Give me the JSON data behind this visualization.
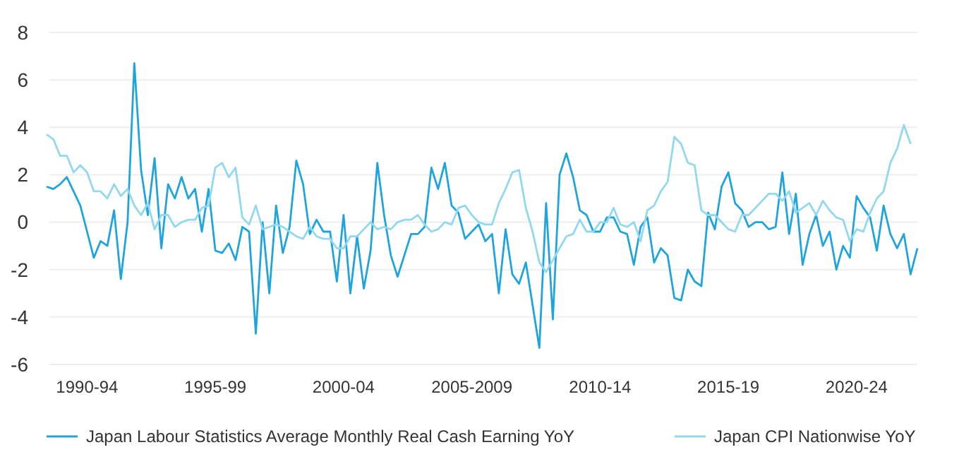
{
  "chart_data": {
    "type": "line",
    "ylim": [
      -6,
      8
    ],
    "yticks": [
      -6,
      -4,
      -2,
      0,
      2,
      4,
      6,
      8
    ],
    "categories": [
      null,
      null,
      null,
      null,
      null,
      null,
      "1990-94",
      null,
      null,
      null,
      null,
      null,
      null,
      null,
      null,
      null,
      null,
      null,
      null,
      null,
      null,
      null,
      null,
      null,
      null,
      "1995-99",
      null,
      null,
      null,
      null,
      null,
      null,
      null,
      null,
      null,
      null,
      null,
      null,
      null,
      null,
      null,
      null,
      null,
      null,
      "2000-04",
      null,
      null,
      null,
      null,
      null,
      null,
      null,
      null,
      null,
      null,
      null,
      null,
      null,
      null,
      null,
      null,
      null,
      null,
      "2005-2009",
      null,
      null,
      null,
      null,
      null,
      null,
      null,
      null,
      null,
      null,
      null,
      null,
      null,
      null,
      null,
      null,
      null,
      null,
      "2010-14",
      null,
      null,
      null,
      null,
      null,
      null,
      null,
      null,
      null,
      null,
      null,
      null,
      null,
      null,
      null,
      null,
      null,
      null,
      "2015-19",
      null,
      null,
      null,
      null,
      null,
      null,
      null,
      null,
      null,
      null,
      null,
      null,
      null,
      null,
      null,
      null,
      null,
      null,
      "2020-24",
      null,
      null,
      null,
      null,
      null,
      null,
      null,
      null,
      null
    ],
    "grid": "y",
    "legend": "bottom",
    "series": [
      {
        "name": "Japan Labour Statistics Average Monthly Real Cash Earning YoY",
        "color": "#1fa5dc",
        "values": [
          1.5,
          1.4,
          1.6,
          1.9,
          1.3,
          0.7,
          -0.4,
          -1.5,
          -0.8,
          -1.0,
          0.5,
          -2.4,
          0.0,
          6.7,
          2.2,
          0.3,
          2.7,
          -1.1,
          1.6,
          1.0,
          1.9,
          1.0,
          1.4,
          -0.4,
          1.4,
          -1.2,
          -1.3,
          -0.9,
          -1.6,
          -0.2,
          -0.4,
          -4.7,
          0.0,
          -3.0,
          0.7,
          -1.3,
          -0.2,
          2.6,
          1.6,
          -0.5,
          0.1,
          -0.4,
          -0.4,
          -2.5,
          0.3,
          -3.0,
          -0.6,
          -2.8,
          -1.2,
          2.5,
          0.3,
          -1.4,
          -2.3,
          -1.4,
          -0.5,
          -0.5,
          -0.2,
          2.3,
          1.4,
          2.5,
          0.7,
          0.4,
          -0.7,
          -0.4,
          -0.1,
          -0.8,
          -0.5,
          -3.0,
          -0.3,
          -2.2,
          -2.6,
          -1.7,
          -3.5,
          -5.3,
          0.8,
          -4.1,
          2.0,
          2.9,
          1.9,
          0.5,
          0.3,
          -0.4,
          -0.4,
          0.2,
          0.2,
          -0.4,
          -0.5,
          -1.8,
          -0.2,
          0.2,
          -1.7,
          -1.1,
          -1.4,
          -3.2,
          -3.3,
          -2.0,
          -2.5,
          -2.7,
          0.4,
          -0.3,
          1.5,
          2.1,
          0.8,
          0.5,
          -0.2,
          0.0,
          0.0,
          -0.3,
          -0.2,
          2.1,
          -0.5,
          1.2,
          -1.8,
          -0.5,
          0.3,
          -1.0,
          -0.4,
          -2.0,
          -1.0,
          -1.5,
          1.1,
          0.6,
          0.2,
          -1.2,
          0.7,
          -0.5,
          -1.1,
          -0.5,
          -2.2,
          -1.1
        ]
      },
      {
        "name": "Japan CPI Nationwise YoY",
        "color": "#92d8ee",
        "values": [
          3.7,
          3.5,
          2.8,
          2.8,
          2.1,
          2.4,
          2.1,
          1.3,
          1.3,
          1.0,
          1.6,
          1.1,
          1.4,
          0.7,
          0.3,
          0.8,
          -0.3,
          0.3,
          0.3,
          -0.2,
          0.0,
          0.1,
          0.1,
          0.6,
          0.7,
          2.3,
          2.5,
          1.9,
          2.3,
          0.2,
          -0.1,
          0.7,
          -0.3,
          -0.2,
          -0.1,
          -0.2,
          -0.4,
          -0.6,
          -0.7,
          -0.2,
          -0.6,
          -0.7,
          -0.7,
          -1.1,
          -1.1,
          -0.6,
          -0.6,
          -0.3,
          0.0,
          -0.3,
          -0.2,
          -0.3,
          0.0,
          0.1,
          0.1,
          0.3,
          -0.1,
          -0.4,
          -0.3,
          0.0,
          -0.1,
          0.6,
          0.7,
          0.3,
          0.0,
          -0.1,
          -0.1,
          0.8,
          1.4,
          2.1,
          2.2,
          0.6,
          -0.4,
          -1.7,
          -2.1,
          -1.6,
          -1.1,
          -0.6,
          -0.5,
          0.1,
          -0.4,
          -0.4,
          0.0,
          0.0,
          0.6,
          -0.1,
          -0.2,
          0.0,
          -0.8,
          0.5,
          0.7,
          1.3,
          1.7,
          3.6,
          3.3,
          2.5,
          2.4,
          0.5,
          0.3,
          0.3,
          0.0,
          -0.3,
          -0.4,
          0.3,
          0.3,
          0.6,
          0.9,
          1.2,
          1.2,
          0.9,
          1.3,
          0.4,
          0.6,
          0.8,
          0.3,
          0.9,
          0.5,
          0.2,
          0.1,
          -0.8,
          -0.3,
          -0.4,
          0.4,
          1.0,
          1.3,
          2.5,
          3.1,
          4.1,
          3.3,
          null
        ]
      }
    ]
  }
}
